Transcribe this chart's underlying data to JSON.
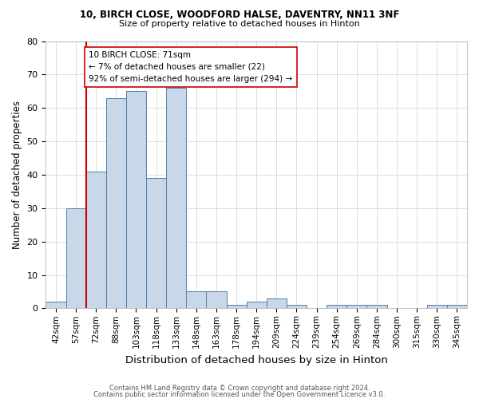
{
  "title1": "10, BIRCH CLOSE, WOODFORD HALSE, DAVENTRY, NN11 3NF",
  "title2": "Size of property relative to detached houses in Hinton",
  "xlabel": "Distribution of detached houses by size in Hinton",
  "ylabel": "Number of detached properties",
  "categories": [
    "42sqm",
    "57sqm",
    "72sqm",
    "88sqm",
    "103sqm",
    "118sqm",
    "133sqm",
    "148sqm",
    "163sqm",
    "178sqm",
    "194sqm",
    "209sqm",
    "224sqm",
    "239sqm",
    "254sqm",
    "269sqm",
    "284sqm",
    "300sqm",
    "315sqm",
    "330sqm",
    "345sqm"
  ],
  "values": [
    2,
    30,
    41,
    63,
    65,
    39,
    66,
    5,
    5,
    1,
    2,
    3,
    1,
    0,
    1,
    1,
    1,
    0,
    0,
    1,
    1
  ],
  "bar_color": "#c8d8e8",
  "bar_edge_color": "#5080a8",
  "marker_color": "#cc0000",
  "annotation_line1": "10 BIRCH CLOSE: 71sqm",
  "annotation_line2": "← 7% of detached houses are smaller (22)",
  "annotation_line3": "92% of semi-detached houses are larger (294) →",
  "annotation_box_color": "#ffffff",
  "annotation_box_edge_color": "#cc0000",
  "ylim": [
    0,
    80
  ],
  "yticks": [
    0,
    10,
    20,
    30,
    40,
    50,
    60,
    70,
    80
  ],
  "footer1": "Contains HM Land Registry data © Crown copyright and database right 2024.",
  "footer2": "Contains public sector information licensed under the Open Government Licence v3.0.",
  "background_color": "#ffffff",
  "grid_color": "#d0d0d0",
  "title1_fontsize": 8.5,
  "title2_fontsize": 8.0,
  "xlabel_fontsize": 9.5,
  "ylabel_fontsize": 8.5,
  "tick_fontsize": 7.5,
  "annotation_fontsize": 7.5,
  "footer_fontsize": 6.0
}
